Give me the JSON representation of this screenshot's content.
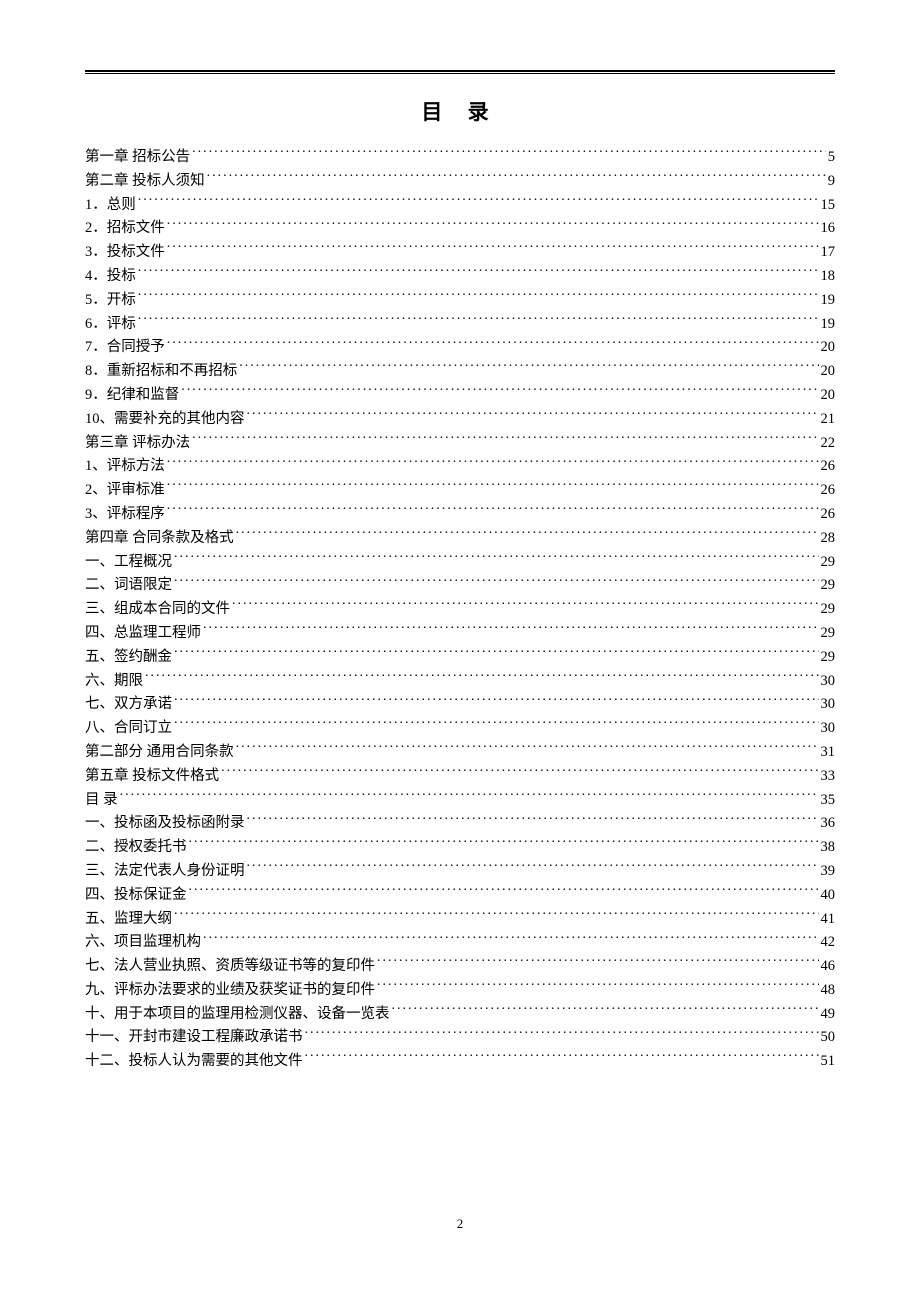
{
  "title": "目  录",
  "pageNumber": "2",
  "toc": [
    {
      "label": "第一章 招标公告",
      "page": "5"
    },
    {
      "label": "第二章 投标人须知",
      "page": "9"
    },
    {
      "label": "1．总则",
      "page": "15"
    },
    {
      "label": "2．招标文件",
      "page": "16"
    },
    {
      "label": "3．投标文件",
      "page": "17"
    },
    {
      "label": "4．投标",
      "page": "18"
    },
    {
      "label": "5．开标",
      "page": "19"
    },
    {
      "label": "6．评标",
      "page": "19"
    },
    {
      "label": "7．合同授予",
      "page": "20"
    },
    {
      "label": "8．重新招标和不再招标",
      "page": "20"
    },
    {
      "label": "9．纪律和监督",
      "page": "20"
    },
    {
      "label": "10、需要补充的其他内容",
      "page": "21"
    },
    {
      "label": "第三章 评标办法",
      "page": "22"
    },
    {
      "label": "1、评标方法",
      "page": "26"
    },
    {
      "label": "2、评审标准",
      "page": "26"
    },
    {
      "label": "3、评标程序",
      "page": "26"
    },
    {
      "label": "第四章 合同条款及格式",
      "page": "28"
    },
    {
      "label": "一、工程概况",
      "page": "29"
    },
    {
      "label": "二、词语限定",
      "page": "29"
    },
    {
      "label": "三、组成本合同的文件",
      "page": "29"
    },
    {
      "label": "四、总监理工程师",
      "page": "29"
    },
    {
      "label": "五、签约酬金",
      "page": "29"
    },
    {
      "label": "六、期限",
      "page": "30"
    },
    {
      "label": "七、双方承诺",
      "page": "30"
    },
    {
      "label": "八、合同订立",
      "page": "30"
    },
    {
      "label": "第二部分    通用合同条款",
      "page": "31"
    },
    {
      "label": "第五章 投标文件格式",
      "page": "33"
    },
    {
      "label": "目  录",
      "page": "35"
    },
    {
      "label": "一、投标函及投标函附录",
      "page": "36"
    },
    {
      "label": "二、授权委托书",
      "page": "38"
    },
    {
      "label": "三、法定代表人身份证明",
      "page": "39"
    },
    {
      "label": "四、投标保证金",
      "page": "40"
    },
    {
      "label": "五、监理大纲",
      "page": "41"
    },
    {
      "label": "六、项目监理机构",
      "page": "42"
    },
    {
      "label": "七、法人营业执照、资质等级证书等的复印件",
      "page": "46"
    },
    {
      "label": "九、评标办法要求的业绩及获奖证书的复印件",
      "page": "48"
    },
    {
      "label": "十、用于本项目的监理用检测仪器、设备一览表",
      "page": "49"
    },
    {
      "label": "十一、开封市建设工程廉政承诺书",
      "page": "50"
    },
    {
      "label": "十二、投标人认为需要的其他文件",
      "page": "51"
    }
  ]
}
